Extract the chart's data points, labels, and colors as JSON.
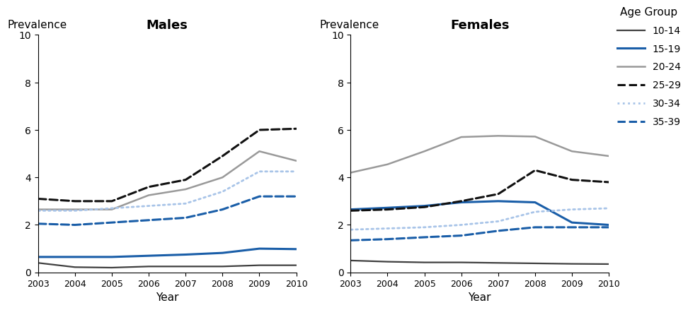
{
  "years": [
    2003,
    2004,
    2005,
    2006,
    2007,
    2008,
    2009,
    2010
  ],
  "males": {
    "10-14": [
      0.4,
      0.22,
      0.2,
      0.25,
      0.25,
      0.25,
      0.3,
      0.3
    ],
    "15-19": [
      0.65,
      0.65,
      0.65,
      0.7,
      0.75,
      0.82,
      1.0,
      0.98
    ],
    "20-24": [
      2.65,
      2.65,
      2.65,
      3.25,
      3.5,
      4.0,
      5.1,
      4.7
    ],
    "25-29": [
      3.1,
      3.0,
      3.0,
      3.6,
      3.9,
      4.9,
      6.0,
      6.05
    ],
    "30-34": [
      2.6,
      2.6,
      2.7,
      2.8,
      2.9,
      3.4,
      4.25,
      4.25
    ],
    "35-39": [
      2.05,
      2.0,
      2.1,
      2.2,
      2.3,
      2.65,
      3.2,
      3.2
    ]
  },
  "females": {
    "10-14": [
      0.5,
      0.45,
      0.42,
      0.42,
      0.4,
      0.38,
      0.36,
      0.35
    ],
    "15-19": [
      2.65,
      2.72,
      2.8,
      2.95,
      3.0,
      2.95,
      2.1,
      2.0
    ],
    "20-24": [
      4.2,
      4.55,
      5.1,
      5.7,
      5.75,
      5.72,
      5.1,
      4.9
    ],
    "25-29": [
      2.6,
      2.65,
      2.75,
      3.0,
      3.3,
      4.3,
      3.9,
      3.8
    ],
    "30-34": [
      1.8,
      1.85,
      1.9,
      2.0,
      2.15,
      2.55,
      2.65,
      2.7
    ],
    "35-39": [
      1.35,
      1.4,
      1.48,
      1.55,
      1.75,
      1.9,
      1.9,
      1.9
    ]
  },
  "age_groups": [
    "10-14",
    "15-19",
    "20-24",
    "25-29",
    "30-34",
    "35-39"
  ],
  "line_styles": {
    "10-14": {
      "color": "#404040",
      "linestyle": "solid",
      "linewidth": 1.6
    },
    "15-19": {
      "color": "#1a5ea8",
      "linestyle": "solid",
      "linewidth": 2.2
    },
    "20-24": {
      "color": "#999999",
      "linestyle": "solid",
      "linewidth": 1.8
    },
    "25-29": {
      "color": "#111111",
      "linestyle": "dashed",
      "linewidth": 2.2
    },
    "30-34": {
      "color": "#a8c4e8",
      "linestyle": "dotted",
      "linewidth": 2.0
    },
    "35-39": {
      "color": "#1a5ea8",
      "linestyle": "dashed",
      "linewidth": 2.2
    }
  },
  "ylim": [
    0,
    10
  ],
  "yticks": [
    0,
    2,
    4,
    6,
    8,
    10
  ],
  "xlabel": "Year",
  "ylabel": "Prevalence",
  "title_males": "Males",
  "title_females": "Females",
  "legend_title": "Age Group",
  "legend_labels": [
    "10-14",
    "15-19",
    "20-24",
    "25-29",
    "30-34",
    "35-39"
  ],
  "background_color": "#ffffff"
}
